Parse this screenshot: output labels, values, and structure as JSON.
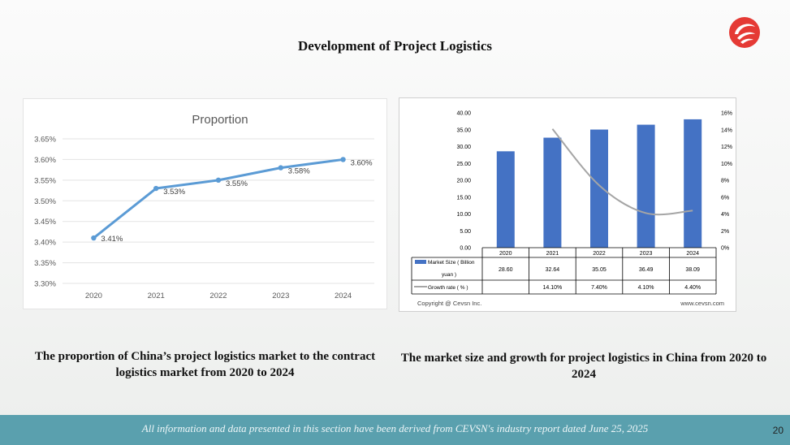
{
  "page": {
    "title": "Development of Project Logistics",
    "caption_left": "The proportion of China’s project logistics market to the contract logistics market from 2020 to 2024",
    "caption_right": "The market size and growth for project logistics in China from 2020 to 2024",
    "footer": "All information and data presented in this section have been derived from CEVSN's industry report dated June 25, 2025",
    "page_number": "20",
    "logo_icon": "red-swirl-logo-icon",
    "colors": {
      "footer": "#5aa0ae",
      "line_blue": "#5b9bd5",
      "bar_blue": "#4472c4",
      "growth_gray": "#a5a5a5",
      "logo_red": "#e53a35"
    }
  },
  "chart_data": [
    {
      "type": "line",
      "title": "Proportion",
      "categories": [
        "2020",
        "2021",
        "2022",
        "2023",
        "2024"
      ],
      "series": [
        {
          "values": [
            3.41,
            3.53,
            3.55,
            3.58,
            3.6
          ]
        }
      ],
      "data_labels": [
        "3.41%",
        "3.53%",
        "3.55%",
        "3.58%",
        "3.60%"
      ],
      "y_ticks": [
        "3.30%",
        "3.35%",
        "3.40%",
        "3.45%",
        "3.50%",
        "3.55%",
        "3.60%",
        "3.65%"
      ],
      "ylim": [
        3.3,
        3.65
      ],
      "grid": true
    },
    {
      "type": "bar",
      "categories": [
        "2020",
        "2021",
        "2022",
        "2023",
        "2024"
      ],
      "series": [
        {
          "name": "Market Size ( Billion yuan )",
          "type": "bar",
          "values": [
            28.6,
            32.64,
            35.05,
            36.49,
            38.09
          ],
          "labels": [
            "28.60",
            "32.64",
            "35.05",
            "36.49",
            "38.09"
          ]
        },
        {
          "name": "Growth rate ( % )",
          "type": "line",
          "values": [
            null,
            14.1,
            7.4,
            4.1,
            4.4
          ],
          "labels": [
            "",
            "14.10%",
            "7.40%",
            "4.10%",
            "4.40%"
          ]
        }
      ],
      "y_left_ticks": [
        "0.00",
        "5.00",
        "10.00",
        "15.00",
        "20.00",
        "25.00",
        "30.00",
        "35.00",
        "40.00"
      ],
      "y_right_ticks": [
        "0%",
        "2%",
        "4%",
        "6%",
        "8%",
        "10%",
        "12%",
        "14%",
        "16%"
      ],
      "ylim_left": [
        0,
        40
      ],
      "ylim_right": [
        0,
        16
      ],
      "copyright": "Copyright @ Cevsn Inc.",
      "website": "www.cevsn.com",
      "legend": "data table below chart"
    }
  ]
}
